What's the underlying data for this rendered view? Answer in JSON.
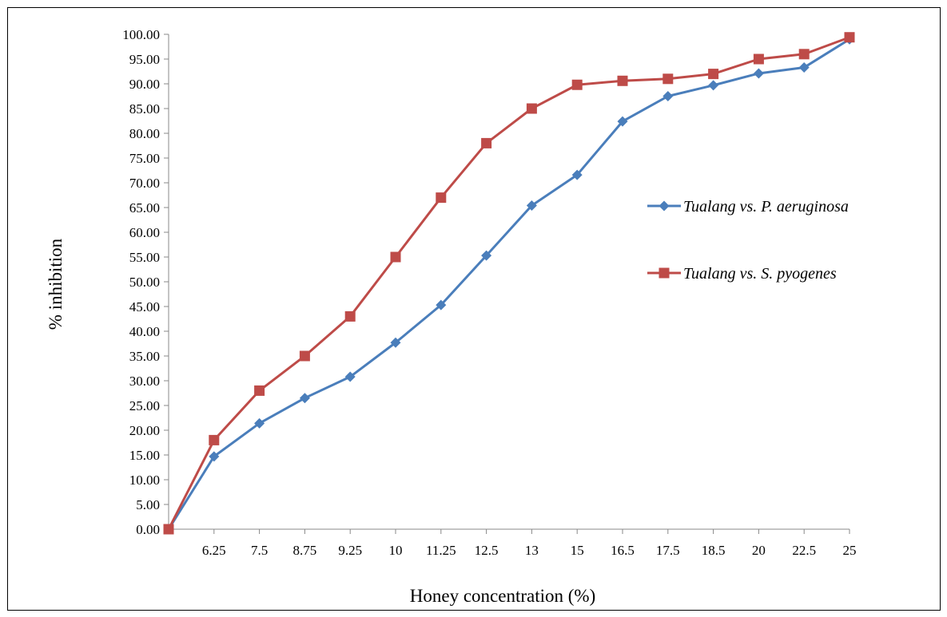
{
  "chart_data": {
    "type": "line",
    "xlabel": "Honey concentration (%)",
    "ylabel": "% inhibition",
    "ylim": [
      0,
      100
    ],
    "y_ticks": [
      "0.00",
      "5.00",
      "10.00",
      "15.00",
      "20.00",
      "25.00",
      "30.00",
      "35.00",
      "40.00",
      "45.00",
      "50.00",
      "55.00",
      "60.00",
      "65.00",
      "70.00",
      "75.00",
      "80.00",
      "85.00",
      "90.00",
      "95.00",
      "100.00"
    ],
    "categories": [
      "",
      "6.25",
      "7.5",
      "8.75",
      "9.25",
      "10",
      "11.25",
      "12.5",
      "13",
      "15",
      "16.5",
      "17.5",
      "18.5",
      "20",
      "22.5",
      "25"
    ],
    "legend_position": "right",
    "grid": false,
    "series": [
      {
        "name": "Tualang vs. P. aeruginosa",
        "color": "#4A7EBB",
        "marker": "diamond",
        "values": [
          0,
          14.7,
          21.4,
          26.5,
          30.8,
          37.7,
          45.3,
          55.3,
          65.4,
          71.6,
          82.4,
          87.5,
          89.7,
          92.1,
          93.3,
          99.0
        ]
      },
      {
        "name": "Tualang vs. S. pyogenes",
        "color": "#BE4B48",
        "marker": "square",
        "values": [
          0,
          18.0,
          28.0,
          35.0,
          43.0,
          55.0,
          67.0,
          78.0,
          85.0,
          89.8,
          90.6,
          91.0,
          92.0,
          95.0,
          96.0,
          99.4
        ]
      }
    ]
  }
}
